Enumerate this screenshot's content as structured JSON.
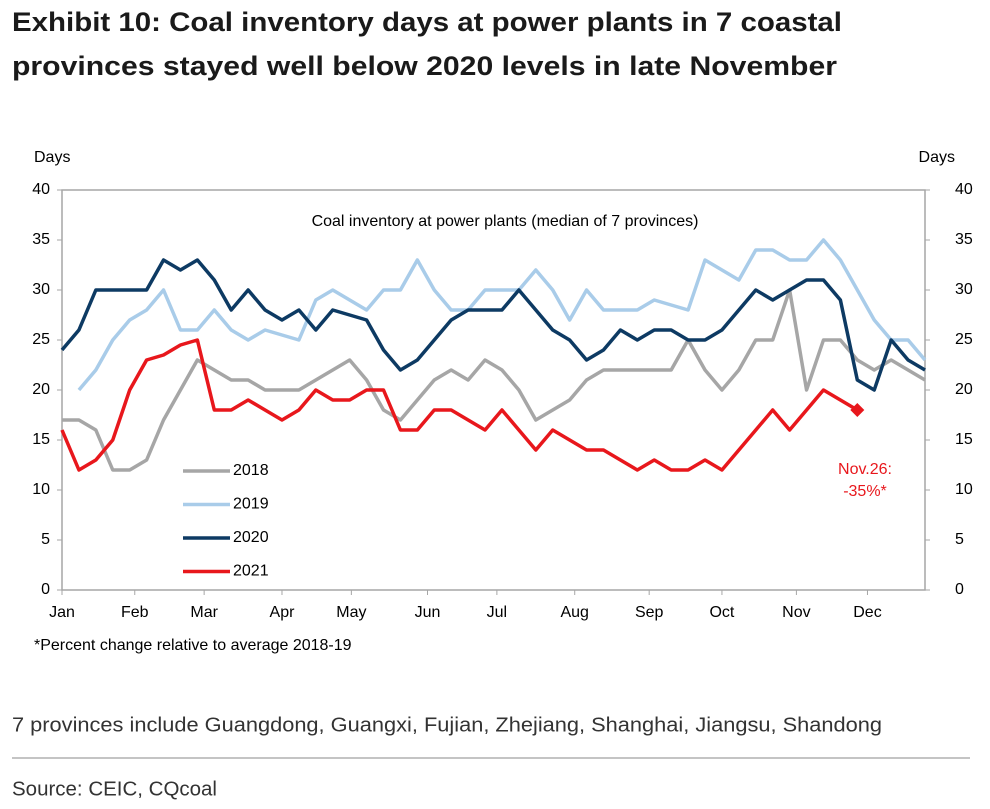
{
  "chart_data": {
    "type": "line",
    "title": [
      "Exhibit 10: Coal inventory days at power plants in 7 coastal",
      "provinces stayed well below 2020 levels in late November"
    ],
    "inner_title": "Coal inventory at power plants (median of 7 provinces)",
    "y_label": "Days",
    "y2_label": "Days",
    "footnote": "*Percent change relative to average 2018-19",
    "note": "7 provinces include Guangdong, Guangxi, Fujian, Zhejiang, Shanghai, Jiangsu, Shandong",
    "source": "Source: CEIC, CQcoal",
    "annotation": {
      "lines": [
        "Nov.26:",
        "-35%*"
      ],
      "color": "#e8171c"
    },
    "x": [
      0,
      1,
      2,
      3,
      4,
      5,
      6,
      7,
      8,
      9,
      10,
      11,
      12,
      13,
      14,
      15,
      16,
      17,
      18,
      19,
      20,
      21,
      22,
      23,
      24,
      25,
      26,
      27,
      28,
      29,
      30,
      31,
      32,
      33,
      34,
      35,
      36,
      37,
      38,
      39,
      40,
      41,
      42,
      43,
      44,
      45,
      46,
      47,
      48,
      49,
      50,
      51
    ],
    "xlim": [
      0,
      51
    ],
    "xticks": [
      {
        "value": 0,
        "label": "Jan"
      },
      {
        "value": 4.3,
        "label": "Feb"
      },
      {
        "value": 8.4,
        "label": "Mar"
      },
      {
        "value": 13,
        "label": "Apr"
      },
      {
        "value": 17.1,
        "label": "May"
      },
      {
        "value": 21.6,
        "label": "Jun"
      },
      {
        "value": 25.7,
        "label": "Jul"
      },
      {
        "value": 30.3,
        "label": "Aug"
      },
      {
        "value": 34.7,
        "label": "Sep"
      },
      {
        "value": 39,
        "label": "Oct"
      },
      {
        "value": 43.4,
        "label": "Nov"
      },
      {
        "value": 47.6,
        "label": "Dec"
      }
    ],
    "ylim": [
      0,
      40
    ],
    "yticks": [
      0,
      5,
      10,
      15,
      20,
      25,
      30,
      35,
      40
    ],
    "y2lim": [
      0,
      40
    ],
    "y2ticks": [
      0,
      5,
      10,
      15,
      20,
      25,
      30,
      35,
      40
    ],
    "series": [
      {
        "name": "2018",
        "color": "#a6a6a6",
        "values": [
          17,
          17,
          16,
          12,
          12,
          13,
          17,
          20,
          23,
          22,
          21,
          21,
          20,
          20,
          20,
          21,
          22,
          23,
          21,
          18,
          17,
          19,
          21,
          22,
          21,
          23,
          22,
          20,
          17,
          18,
          19,
          21,
          22,
          22,
          22,
          22,
          22,
          25,
          22,
          20,
          22,
          25,
          25,
          30,
          20,
          25,
          25,
          23,
          22,
          23,
          22,
          21
        ]
      },
      {
        "name": "2019",
        "color": "#a9cce9",
        "values": [
          null,
          20,
          22,
          25,
          27,
          28,
          30,
          26,
          26,
          28,
          26,
          25,
          26,
          25.5,
          25,
          29,
          30,
          29,
          28,
          30,
          30,
          33,
          30,
          28,
          28,
          30,
          30,
          30,
          32,
          30,
          27,
          30,
          28,
          28,
          28,
          29,
          28.5,
          28,
          33,
          32,
          31,
          34,
          34,
          33,
          33,
          35,
          33,
          30,
          27,
          25,
          25,
          23
        ]
      },
      {
        "name": "2020",
        "color": "#0d3a63",
        "values": [
          24,
          26,
          30,
          30,
          30,
          30,
          33,
          32,
          33,
          31,
          28,
          30,
          28,
          27,
          28,
          26,
          28,
          27.5,
          27,
          24,
          22,
          23,
          25,
          27,
          28,
          28,
          28,
          30,
          28,
          26,
          25,
          23,
          24,
          26,
          25,
          26,
          26,
          25,
          25,
          26,
          28,
          30,
          29,
          30,
          31,
          31,
          29,
          21,
          20,
          25,
          23,
          22
        ]
      },
      {
        "name": "2021",
        "color": "#e8171c",
        "values": [
          16,
          12,
          13,
          15,
          20,
          23,
          23.5,
          24.5,
          25,
          18,
          18,
          19,
          18,
          17,
          18,
          20,
          19,
          19,
          20,
          20,
          16,
          16,
          18,
          18,
          17,
          16,
          18,
          16,
          14,
          16,
          15,
          14,
          14,
          13,
          12,
          13,
          12,
          12,
          13,
          12,
          14,
          16,
          18,
          16,
          18,
          20,
          19,
          18,
          null,
          null,
          null,
          null
        ]
      }
    ]
  }
}
